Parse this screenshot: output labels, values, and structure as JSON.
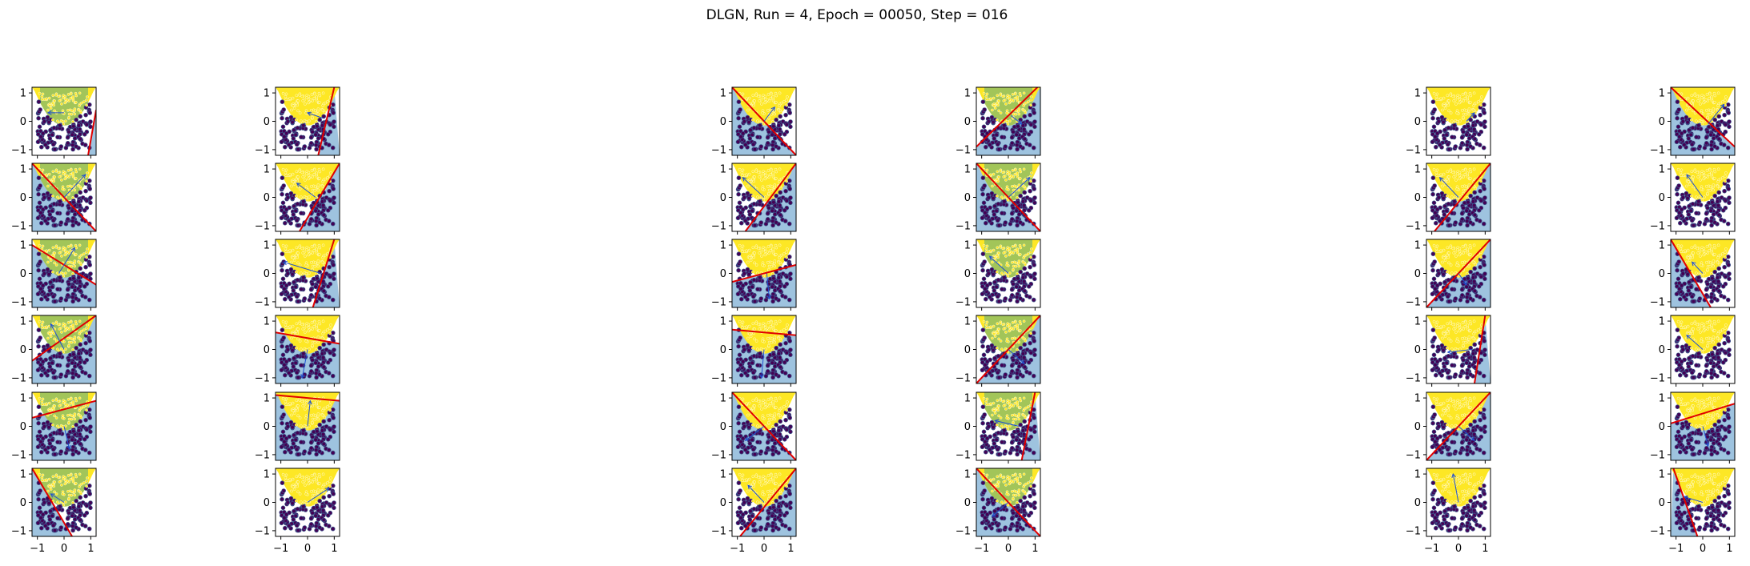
{
  "chart_data": {
    "type": "scatter",
    "title": "DLGN, Run = 4, Epoch = 00050, Step = 016",
    "rows": 6,
    "cols": 6,
    "xlim": [
      -1.2,
      1.2
    ],
    "ylim": [
      -1.2,
      1.2
    ],
    "xticks": [
      -1,
      0,
      1
    ],
    "yticks": [
      -1,
      0,
      1
    ],
    "xtick_labels": [
      "−1",
      "0",
      "1"
    ],
    "ytick_labels": [
      "−1",
      "0",
      "1"
    ],
    "grid": false,
    "legend": "none",
    "colors": {
      "class_a_points": "#fde725",
      "class_b_points": "#440154",
      "class_b_edge": "#3b528b",
      "positive_region": "#9dc35c",
      "negative_region": "#94bddb",
      "positive_class_fill": "#fde725",
      "boundary_line": "#e00000",
      "normal_arrow": "#1f4fd1"
    },
    "panels": [
      {
        "line": [
          [
            0.9,
            -1.2
          ],
          [
            1.2,
            0.4
          ]
        ],
        "arrow": [
          [
            0.0,
            0.3
          ],
          [
            -0.6,
            0.3
          ]
        ]
      },
      {
        "line": [
          [
            0.4,
            -1.2
          ],
          [
            1.0,
            1.2
          ]
        ],
        "arrow": [
          [
            0.6,
            0.1
          ],
          [
            0.0,
            0.3
          ]
        ]
      },
      {
        "line": [
          [
            -1.2,
            1.2
          ],
          [
            1.2,
            -1.2
          ]
        ],
        "arrow": [
          [
            0.0,
            0.0
          ],
          [
            0.4,
            0.5
          ]
        ]
      },
      {
        "line": [
          [
            -1.2,
            -0.9
          ],
          [
            1.2,
            1.3
          ]
        ],
        "arrow": [
          [
            0.1,
            0.2
          ],
          [
            0.5,
            -0.1
          ]
        ]
      },
      {
        "line": [
          [
            1.3,
            -1.3
          ],
          [
            1.3,
            -1.2
          ]
        ],
        "arrow": [
          [
            0.3,
            0.0
          ],
          [
            0.6,
            0.3
          ]
        ]
      },
      {
        "line": [
          [
            -1.2,
            1.2
          ],
          [
            1.2,
            -0.9
          ]
        ],
        "arrow": [
          [
            0.2,
            -0.1
          ],
          [
            0.8,
            0.6
          ]
        ]
      },
      {
        "line": [
          [
            -1.2,
            1.2
          ],
          [
            1.2,
            -1.2
          ]
        ],
        "arrow": [
          [
            0.0,
            0.0
          ],
          [
            0.8,
            0.8
          ]
        ]
      },
      {
        "line": [
          [
            -0.3,
            -1.2
          ],
          [
            1.2,
            1.2
          ]
        ],
        "arrow": [
          [
            0.3,
            0.0
          ],
          [
            -0.4,
            0.5
          ]
        ]
      },
      {
        "line": [
          [
            -0.7,
            -1.2
          ],
          [
            1.2,
            1.2
          ]
        ],
        "arrow": [
          [
            0.0,
            0.0
          ],
          [
            -0.8,
            0.7
          ]
        ]
      },
      {
        "line": [
          [
            -1.2,
            1.2
          ],
          [
            1.2,
            -1.2
          ]
        ],
        "arrow": [
          [
            0.0,
            0.0
          ],
          [
            0.8,
            0.7
          ]
        ]
      },
      {
        "line": [
          [
            -0.9,
            -1.2
          ],
          [
            1.2,
            1.2
          ]
        ],
        "arrow": [
          [
            0.0,
            0.0
          ],
          [
            -0.7,
            0.7
          ]
        ]
      },
      {
        "line": [
          [
            1.3,
            -1.3
          ],
          [
            1.3,
            -1.2
          ]
        ],
        "arrow": [
          [
            0.0,
            0.0
          ],
          [
            -0.6,
            0.8
          ]
        ]
      },
      {
        "line": [
          [
            -1.2,
            1.0
          ],
          [
            1.2,
            -0.4
          ]
        ],
        "arrow": [
          [
            -0.2,
            0.0
          ],
          [
            0.4,
            0.9
          ]
        ]
      },
      {
        "line": [
          [
            0.2,
            -1.2
          ],
          [
            1.0,
            1.2
          ]
        ],
        "arrow": [
          [
            0.5,
            0.0
          ],
          [
            -0.9,
            0.4
          ]
        ]
      },
      {
        "line": [
          [
            -1.2,
            -0.3
          ],
          [
            1.2,
            0.3
          ]
        ],
        "arrow": [
          [
            0.1,
            0.0
          ],
          [
            0.2,
            -0.9
          ]
        ]
      },
      {
        "line": [
          [
            1.3,
            -1.3
          ],
          [
            1.3,
            -1.2
          ]
        ],
        "arrow": [
          [
            0.0,
            0.0
          ],
          [
            -0.7,
            0.6
          ]
        ]
      },
      {
        "line": [
          [
            -1.2,
            -1.2
          ],
          [
            1.2,
            1.2
          ]
        ],
        "arrow": [
          [
            0.0,
            0.0
          ],
          [
            0.3,
            -0.4
          ]
        ]
      },
      {
        "line": [
          [
            -1.2,
            1.2
          ],
          [
            0.3,
            -1.2
          ]
        ],
        "arrow": [
          [
            0.0,
            0.0
          ],
          [
            -0.4,
            0.4
          ]
        ]
      },
      {
        "line": [
          [
            -1.2,
            -0.4
          ],
          [
            1.2,
            1.2
          ]
        ],
        "arrow": [
          [
            0.0,
            0.0
          ],
          [
            -0.5,
            0.9
          ]
        ]
      },
      {
        "line": [
          [
            -1.2,
            0.6
          ],
          [
            1.2,
            0.2
          ]
        ],
        "arrow": [
          [
            0.0,
            0.0
          ],
          [
            -0.2,
            -1.0
          ]
        ]
      },
      {
        "line": [
          [
            -1.2,
            0.7
          ],
          [
            1.2,
            0.5
          ]
        ],
        "arrow": [
          [
            0.0,
            0.0
          ],
          [
            -0.1,
            -1.0
          ]
        ]
      },
      {
        "line": [
          [
            -1.2,
            -1.2
          ],
          [
            1.2,
            1.2
          ]
        ],
        "arrow": [
          [
            0.0,
            0.0
          ],
          [
            0.6,
            -0.5
          ]
        ]
      },
      {
        "line": [
          [
            0.6,
            -1.2
          ],
          [
            1.0,
            1.2
          ]
        ],
        "arrow": [
          [
            0.5,
            0.0
          ],
          [
            -0.4,
            -0.1
          ]
        ]
      },
      {
        "line": [
          [
            1.3,
            -1.3
          ],
          [
            1.3,
            -1.2
          ]
        ],
        "arrow": [
          [
            0.0,
            0.0
          ],
          [
            -0.6,
            0.5
          ]
        ]
      },
      {
        "line": [
          [
            -1.2,
            0.3
          ],
          [
            1.2,
            0.9
          ]
        ],
        "arrow": [
          [
            0.0,
            0.0
          ],
          [
            0.2,
            -0.8
          ]
        ]
      },
      {
        "line": [
          [
            -1.2,
            1.1
          ],
          [
            1.2,
            0.9
          ]
        ],
        "arrow": [
          [
            0.0,
            0.0
          ],
          [
            0.1,
            0.9
          ]
        ]
      },
      {
        "line": [
          [
            -1.2,
            1.2
          ],
          [
            1.2,
            -1.2
          ]
        ],
        "arrow": [
          [
            0.0,
            0.0
          ],
          [
            -0.7,
            -0.5
          ]
        ]
      },
      {
        "line": [
          [
            0.5,
            -1.2
          ],
          [
            1.0,
            1.2
          ]
        ],
        "arrow": [
          [
            0.4,
            0.0
          ],
          [
            -0.5,
            0.2
          ]
        ]
      },
      {
        "line": [
          [
            -1.2,
            -1.2
          ],
          [
            1.2,
            1.2
          ]
        ],
        "arrow": [
          [
            0.0,
            0.0
          ],
          [
            0.6,
            -0.5
          ]
        ]
      },
      {
        "line": [
          [
            -1.2,
            0.1
          ],
          [
            1.2,
            0.8
          ]
        ],
        "arrow": [
          [
            0.0,
            0.0
          ],
          [
            0.2,
            -0.7
          ]
        ]
      },
      {
        "line": [
          [
            -1.2,
            1.2
          ],
          [
            0.3,
            -1.2
          ]
        ],
        "arrow": [
          [
            0.0,
            0.0
          ],
          [
            -0.5,
            0.3
          ]
        ]
      },
      {
        "line": [
          [
            1.3,
            -1.3
          ],
          [
            1.3,
            -1.2
          ]
        ],
        "arrow": [
          [
            0.0,
            0.0
          ],
          [
            0.8,
            0.5
          ]
        ]
      },
      {
        "line": [
          [
            -0.9,
            -1.2
          ],
          [
            1.2,
            1.2
          ]
        ],
        "arrow": [
          [
            0.0,
            0.0
          ],
          [
            -0.6,
            0.6
          ]
        ]
      },
      {
        "line": [
          [
            -1.2,
            1.2
          ],
          [
            1.2,
            -1.2
          ]
        ],
        "arrow": [
          [
            0.0,
            0.0
          ],
          [
            -0.6,
            -0.5
          ]
        ]
      },
      {
        "line": [
          [
            1.3,
            -1.3
          ],
          [
            1.3,
            -1.2
          ]
        ],
        "arrow": [
          [
            0.0,
            0.0
          ],
          [
            -0.2,
            1.0
          ]
        ]
      },
      {
        "line": [
          [
            -1.1,
            1.2
          ],
          [
            -0.2,
            -1.2
          ]
        ],
        "arrow": [
          [
            0.0,
            0.0
          ],
          [
            -0.7,
            0.2
          ]
        ]
      }
    ]
  }
}
